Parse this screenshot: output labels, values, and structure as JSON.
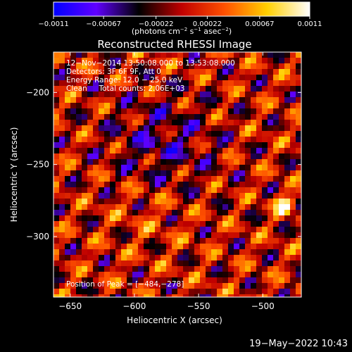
{
  "chart_data": {
    "type": "heatmap",
    "title": "Reconstructed RHESSI Image",
    "xlabel": "Heliocentric X (arcsec)",
    "ylabel": "Heliocentric Y (arcsec)",
    "xlim": [
      -663,
      -470
    ],
    "ylim": [
      -342,
      -172
    ],
    "x_ticks": [
      -650,
      -600,
      -550,
      -500
    ],
    "x_tick_labels": [
      "−650",
      "−600",
      "−550",
      "−500"
    ],
    "y_ticks": [
      -200,
      -250,
      -300
    ],
    "y_tick_labels": [
      "−200",
      "−250",
      "−300"
    ],
    "colorbar": {
      "range": [
        -0.0011,
        0.0011
      ],
      "ticks": [
        -0.0011,
        -0.00067,
        -0.00022,
        0.00022,
        0.00067,
        0.0011
      ],
      "tick_labels": [
        "−0.0011",
        "−0.00067",
        "−0.00022",
        "0.00022",
        "0.00067",
        "0.0011"
      ],
      "colormap": [
        "#0000ff",
        "#6000ff",
        "#000000",
        "#c00000",
        "#ff5000",
        "#ffd000",
        "#ffffff"
      ]
    },
    "peak": [
      -484,
      -278
    ],
    "annotations": [
      "12−Nov−2014 13:50:08.000 to 13:53:08.000",
      "Detectors: 3F 6F 9F, Att 0",
      "Energy Range: 12.0 − 25.0 keV",
      "Clean     Total counts: 2.06E+03"
    ],
    "peak_annotation": "Position of Peak = [−484,−278]"
  },
  "footer": {
    "timestamp": "19−May−2022 10:43"
  },
  "colorbar_units_html": "(photons cm<tspan dy='-4' font-size='7'>−2</tspan><tspan dy='4'> s</tspan><tspan dy='-4' font-size='7'>−1</tspan><tspan dy='4'> asec</tspan><tspan dy='-4' font-size='7'>−2</tspan><tspan dy='4'>)</tspan>"
}
